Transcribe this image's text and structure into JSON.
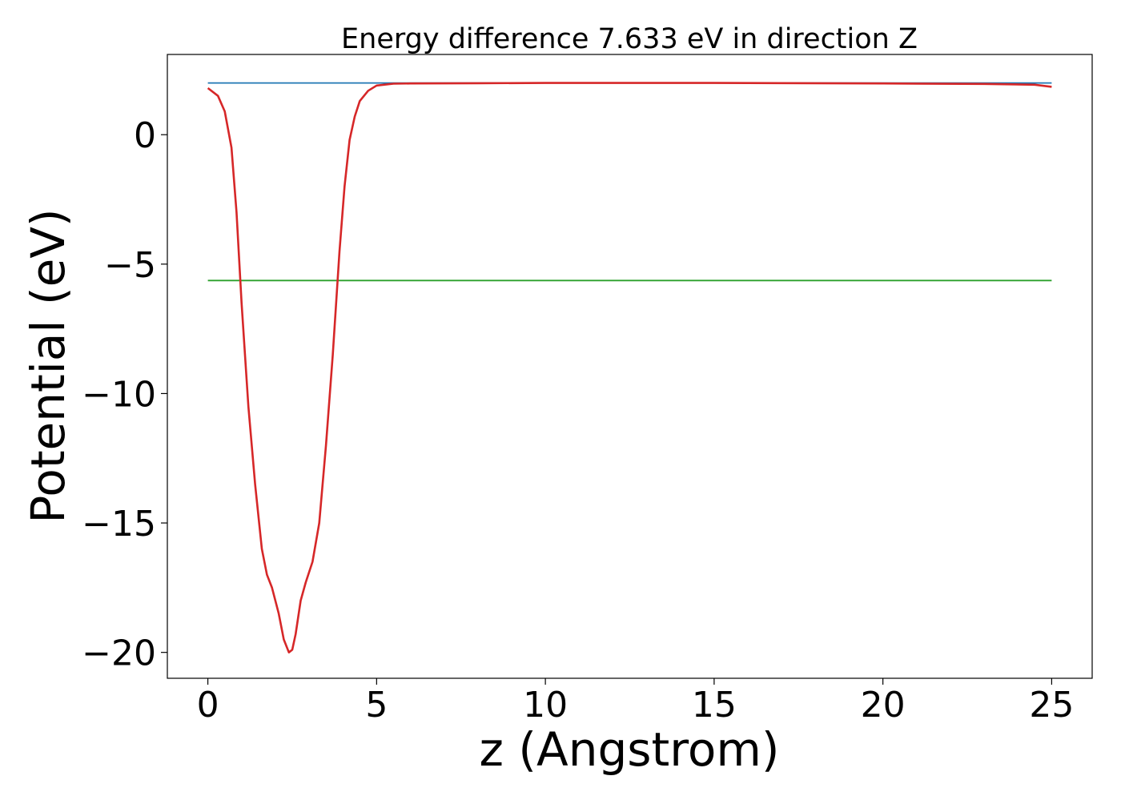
{
  "chart_data": {
    "type": "line",
    "title": "Energy difference 7.633 eV in direction Z",
    "xlabel": "z (Angstrom)",
    "ylabel": "Potential (eV)",
    "xlim": [
      -1.2,
      26.2
    ],
    "ylim": [
      -21.0,
      3.1
    ],
    "xticks": [
      0,
      5,
      10,
      15,
      20,
      25
    ],
    "xtick_labels": [
      "0",
      "5",
      "10",
      "15",
      "20",
      "25"
    ],
    "yticks": [
      0,
      -5,
      -10,
      -15,
      -20
    ],
    "ytick_labels": [
      "0",
      "−5",
      "−10",
      "−15",
      "−20"
    ],
    "grid": false,
    "legend": "none",
    "series": [
      {
        "color": "#1f77b4",
        "x": [
          0,
          25
        ],
        "y": [
          2.0,
          2.0
        ]
      },
      {
        "color": "#2ca02c",
        "x": [
          0,
          25
        ],
        "y": [
          -5.633,
          -5.633
        ]
      },
      {
        "color": "#d62728",
        "x": [
          0,
          0.3,
          0.5,
          0.7,
          0.85,
          1.0,
          1.2,
          1.4,
          1.6,
          1.75,
          1.9,
          2.1,
          2.25,
          2.4,
          2.5,
          2.6,
          2.75,
          2.9,
          3.1,
          3.3,
          3.5,
          3.7,
          3.9,
          4.05,
          4.2,
          4.35,
          4.5,
          4.75,
          5.0,
          5.5,
          6.0,
          8.0,
          10.0,
          15.0,
          20.0,
          23.0,
          24.5,
          25.0
        ],
        "y": [
          1.8,
          1.5,
          0.9,
          -0.5,
          -3.0,
          -6.5,
          -10.5,
          -13.5,
          -16.0,
          -17.0,
          -17.5,
          -18.5,
          -19.5,
          -20.0,
          -19.9,
          -19.3,
          -18.0,
          -17.3,
          -16.5,
          -15.0,
          -12.0,
          -8.5,
          -4.5,
          -2.0,
          -0.2,
          0.7,
          1.3,
          1.7,
          1.9,
          1.97,
          1.98,
          1.99,
          2.0,
          2.0,
          1.98,
          1.96,
          1.93,
          1.85
        ]
      }
    ]
  }
}
